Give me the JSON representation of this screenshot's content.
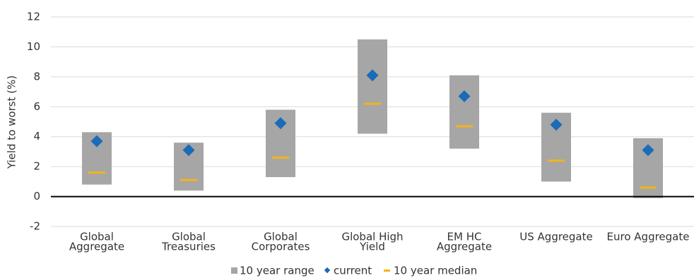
{
  "chart_data": {
    "type": "range",
    "y_label": "Yield to worst (%)",
    "categories": [
      [
        "Global",
        "Aggregate"
      ],
      [
        "Global",
        "Treasuries"
      ],
      [
        "Global",
        "Corporates"
      ],
      [
        "Global High",
        "Yield"
      ],
      [
        "EM HC",
        "Aggregate"
      ],
      [
        "US Aggregate"
      ],
      [
        "Euro Aggregate"
      ]
    ],
    "series": [
      {
        "name": "10 year range",
        "color": "#a6a6a6",
        "low": [
          0.8,
          0.4,
          1.3,
          4.2,
          3.2,
          1.0,
          -0.1
        ],
        "high": [
          4.3,
          3.6,
          5.8,
          10.5,
          8.1,
          5.6,
          3.9
        ]
      },
      {
        "name": "current",
        "color": "#1a6bb8",
        "values": [
          3.7,
          3.1,
          4.9,
          8.1,
          6.7,
          4.8,
          3.1
        ]
      },
      {
        "name": "10 year median",
        "color": "#f5b31a",
        "values": [
          1.6,
          1.1,
          2.6,
          6.2,
          4.7,
          2.4,
          0.6
        ]
      }
    ],
    "ylim": [
      -2,
      12
    ],
    "yticks": [
      -2,
      0,
      2,
      4,
      6,
      8,
      10,
      12
    ],
    "grid": true
  }
}
